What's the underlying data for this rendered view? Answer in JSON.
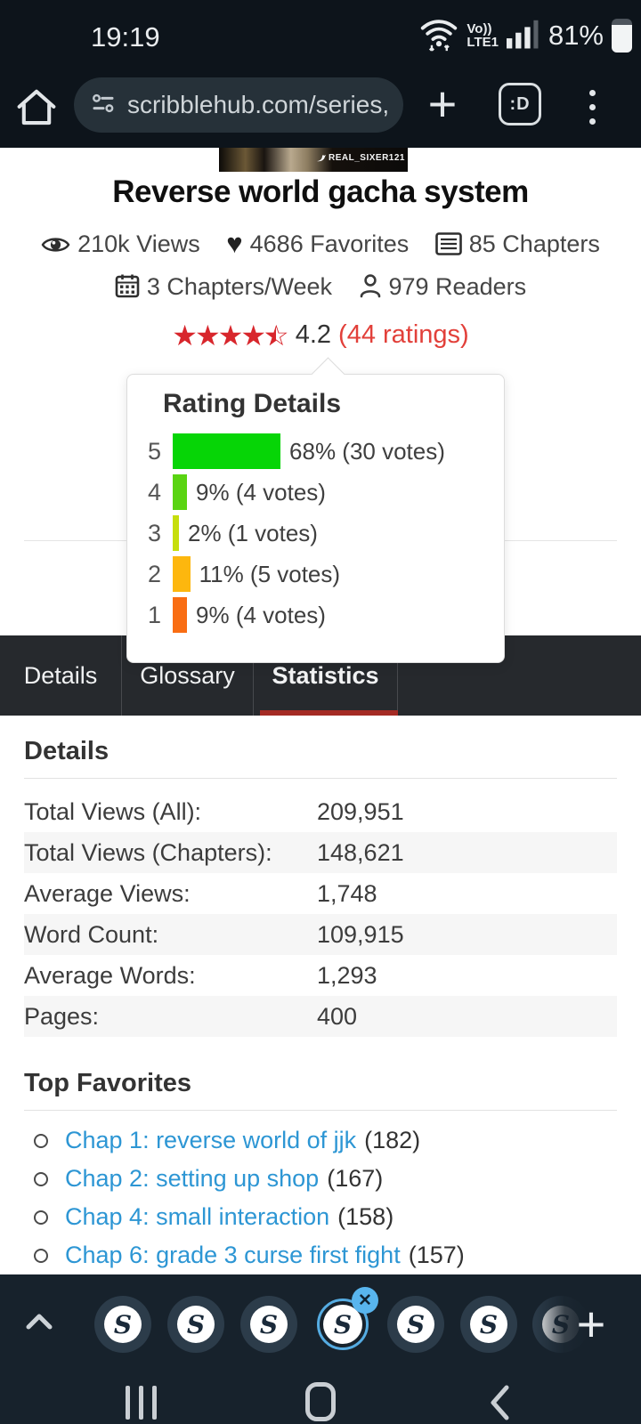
{
  "status_bar": {
    "time": "19:19",
    "volte_top": "Vo))",
    "volte_bottom": "LTE1",
    "battery_percent": "81%"
  },
  "browser": {
    "url": "scribblehub.com/series,",
    "tab_count_badge": ":D"
  },
  "cover": {
    "watermark": "REAL_SIXER121"
  },
  "series": {
    "title": "Reverse world gacha system",
    "stats": [
      {
        "icon": "eye-icon",
        "text": "210k Views"
      },
      {
        "icon": "heart-icon",
        "text": "4686 Favorites"
      },
      {
        "icon": "chapters-icon",
        "text": "85 Chapters"
      },
      {
        "icon": "calendar-icon",
        "text": "3 Chapters/Week"
      },
      {
        "icon": "reader-icon",
        "text": "979 Readers"
      }
    ],
    "rating_value": "4.2",
    "rating_count": "(44 ratings)"
  },
  "rating_popup": {
    "title": "Rating Details",
    "rows": [
      {
        "stars": "5",
        "percent": 68,
        "label": "68% (30 votes)",
        "color": "#06d506"
      },
      {
        "stars": "4",
        "percent": 9,
        "label": "9% (4 votes)",
        "color": "#5ad412"
      },
      {
        "stars": "3",
        "percent": 2,
        "label": "2% (1 votes)",
        "color": "#c6de0c"
      },
      {
        "stars": "2",
        "percent": 11,
        "label": "11% (5 votes)",
        "color": "#fdb70e"
      },
      {
        "stars": "1",
        "percent": 9,
        "label": "9% (4 votes)",
        "color": "#f96d13"
      }
    ]
  },
  "tabs": [
    {
      "label": "Details",
      "active": false
    },
    {
      "label": "Glossary",
      "active": false
    },
    {
      "label": "Statistics",
      "active": true
    }
  ],
  "details_section": {
    "heading": "Details",
    "rows": [
      {
        "label": "Total Views (All):",
        "value": "209,951"
      },
      {
        "label": "Total Views (Chapters):",
        "value": "148,621"
      },
      {
        "label": "Average Views:",
        "value": "1,748"
      },
      {
        "label": "Word Count:",
        "value": "109,915"
      },
      {
        "label": "Average Words:",
        "value": "1,293"
      },
      {
        "label": "Pages:",
        "value": "400"
      }
    ]
  },
  "favorites_section": {
    "heading": "Top Favorites",
    "items": [
      {
        "link": "Chap 1: reverse world of jjk",
        "count": "(182)"
      },
      {
        "link": "Chap 2: setting up shop",
        "count": "(167)"
      },
      {
        "link": "Chap 4: small interaction",
        "count": "(158)"
      },
      {
        "link": "Chap 6: grade 3 curse first fight",
        "count": "(157)"
      }
    ]
  },
  "bubble_bar": {
    "logo_letter": "S"
  },
  "colors": {
    "chrome_bg": "#0d141b",
    "tabbar_bg": "#26292d",
    "tab_accent_red": "#a42b24",
    "link_blue": "#2d96d4",
    "star_red": "#d8262c",
    "panel_bg": "#17222c",
    "bubble_ring_blue": "#55ace2"
  }
}
